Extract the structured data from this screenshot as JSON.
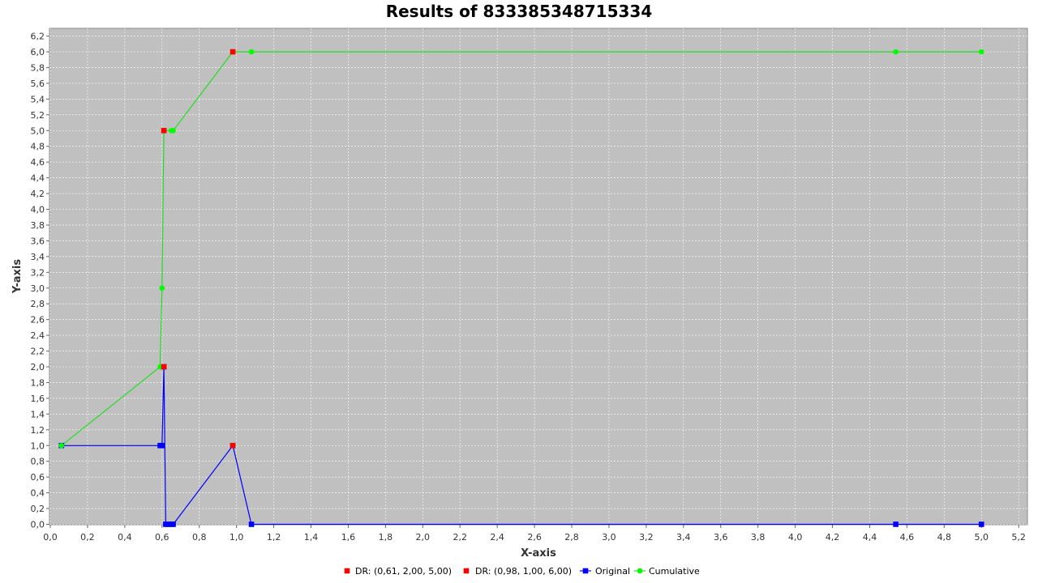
{
  "chart_data": {
    "type": "line",
    "title": "Results of 833385348715334",
    "xlabel": "X-axis",
    "ylabel": "Y-axis",
    "xlim": [
      0.0,
      5.25
    ],
    "ylim": [
      0.0,
      6.3
    ],
    "x_ticks": [
      "0,0",
      "0,2",
      "0,4",
      "0,6",
      "0,8",
      "1,0",
      "1,2",
      "1,4",
      "1,6",
      "1,8",
      "2,0",
      "2,2",
      "2,4",
      "2,6",
      "2,8",
      "3,0",
      "3,2",
      "3,4",
      "3,6",
      "3,8",
      "4,0",
      "4,2",
      "4,4",
      "4,6",
      "4,8",
      "5,0",
      "5,2"
    ],
    "y_ticks": [
      "0,0",
      "0,2",
      "0,4",
      "0,6",
      "0,8",
      "1,0",
      "1,2",
      "1,4",
      "1,6",
      "1,8",
      "2,0",
      "2,2",
      "2,4",
      "2,6",
      "2,8",
      "3,0",
      "3,2",
      "3,4",
      "3,6",
      "3,8",
      "4,0",
      "4,2",
      "4,4",
      "4,6",
      "4,8",
      "5,0",
      "5,2",
      "5,4",
      "5,6",
      "5,8",
      "6,0",
      "6,2"
    ],
    "grid": true,
    "legend_position": "bottom",
    "plot_background": "#c0c0c0",
    "series": [
      {
        "name": "DR: (0,61, 2,00, 5,00)",
        "color": "#ff0000",
        "marker": "square",
        "line": false,
        "points": [
          [
            0.61,
            2.0
          ],
          [
            0.61,
            5.0
          ]
        ]
      },
      {
        "name": "DR: (0,98, 1,00, 6,00)",
        "color": "#ff0000",
        "marker": "square",
        "line": false,
        "points": [
          [
            0.98,
            1.0
          ],
          [
            0.98,
            6.0
          ]
        ]
      },
      {
        "name": "Original",
        "color": "#0000ff",
        "marker": "square",
        "line": true,
        "points": [
          [
            0.06,
            1.0
          ],
          [
            0.59,
            1.0
          ],
          [
            0.6,
            1.0
          ],
          [
            0.61,
            2.0
          ],
          [
            0.62,
            0.0
          ],
          [
            0.63,
            0.0
          ],
          [
            0.65,
            0.0
          ],
          [
            0.66,
            0.0
          ],
          [
            0.98,
            1.0
          ],
          [
            1.08,
            0.0
          ],
          [
            4.54,
            0.0
          ],
          [
            5.0,
            0.0
          ]
        ]
      },
      {
        "name": "Cumulative",
        "color": "#00ff00",
        "marker": "circle",
        "line": true,
        "points": [
          [
            0.06,
            1.0
          ],
          [
            0.59,
            2.0
          ],
          [
            0.6,
            3.0
          ],
          [
            0.61,
            5.0
          ],
          [
            0.65,
            5.0
          ],
          [
            0.66,
            5.0
          ],
          [
            0.98,
            6.0
          ],
          [
            1.08,
            6.0
          ],
          [
            4.54,
            6.0
          ],
          [
            5.0,
            6.0
          ]
        ]
      }
    ]
  }
}
